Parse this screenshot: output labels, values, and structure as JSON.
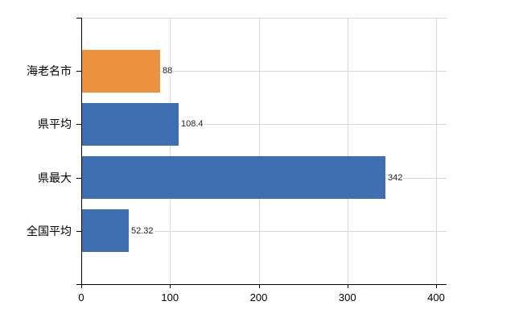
{
  "chart_data": {
    "type": "bar",
    "orientation": "horizontal",
    "title": "",
    "xlabel": "",
    "ylabel": "",
    "categories": [
      "海老名市",
      "県平均",
      "県最大",
      "全国平均"
    ],
    "values": [
      88,
      108.4,
      342,
      52.32
    ],
    "value_labels": [
      "88",
      "108.4",
      "342",
      "52.32"
    ],
    "bar_colors": [
      "#ec923f",
      "#3e6fb0",
      "#3e6fb0",
      "#3e6fb0"
    ],
    "xlim": [
      0,
      400
    ],
    "x_tick_values": [
      0,
      100,
      200,
      300,
      400
    ],
    "x_tick_labels": [
      "0",
      "100",
      "200",
      "300",
      "400"
    ],
    "grid": true,
    "legend": false
  },
  "colors": {
    "highlight_bar": "#ec923f",
    "default_bar": "#3e6fb0",
    "gridline": "#d9d9d9",
    "axis": "#000000",
    "text": "#000000",
    "background": "#ffffff"
  }
}
